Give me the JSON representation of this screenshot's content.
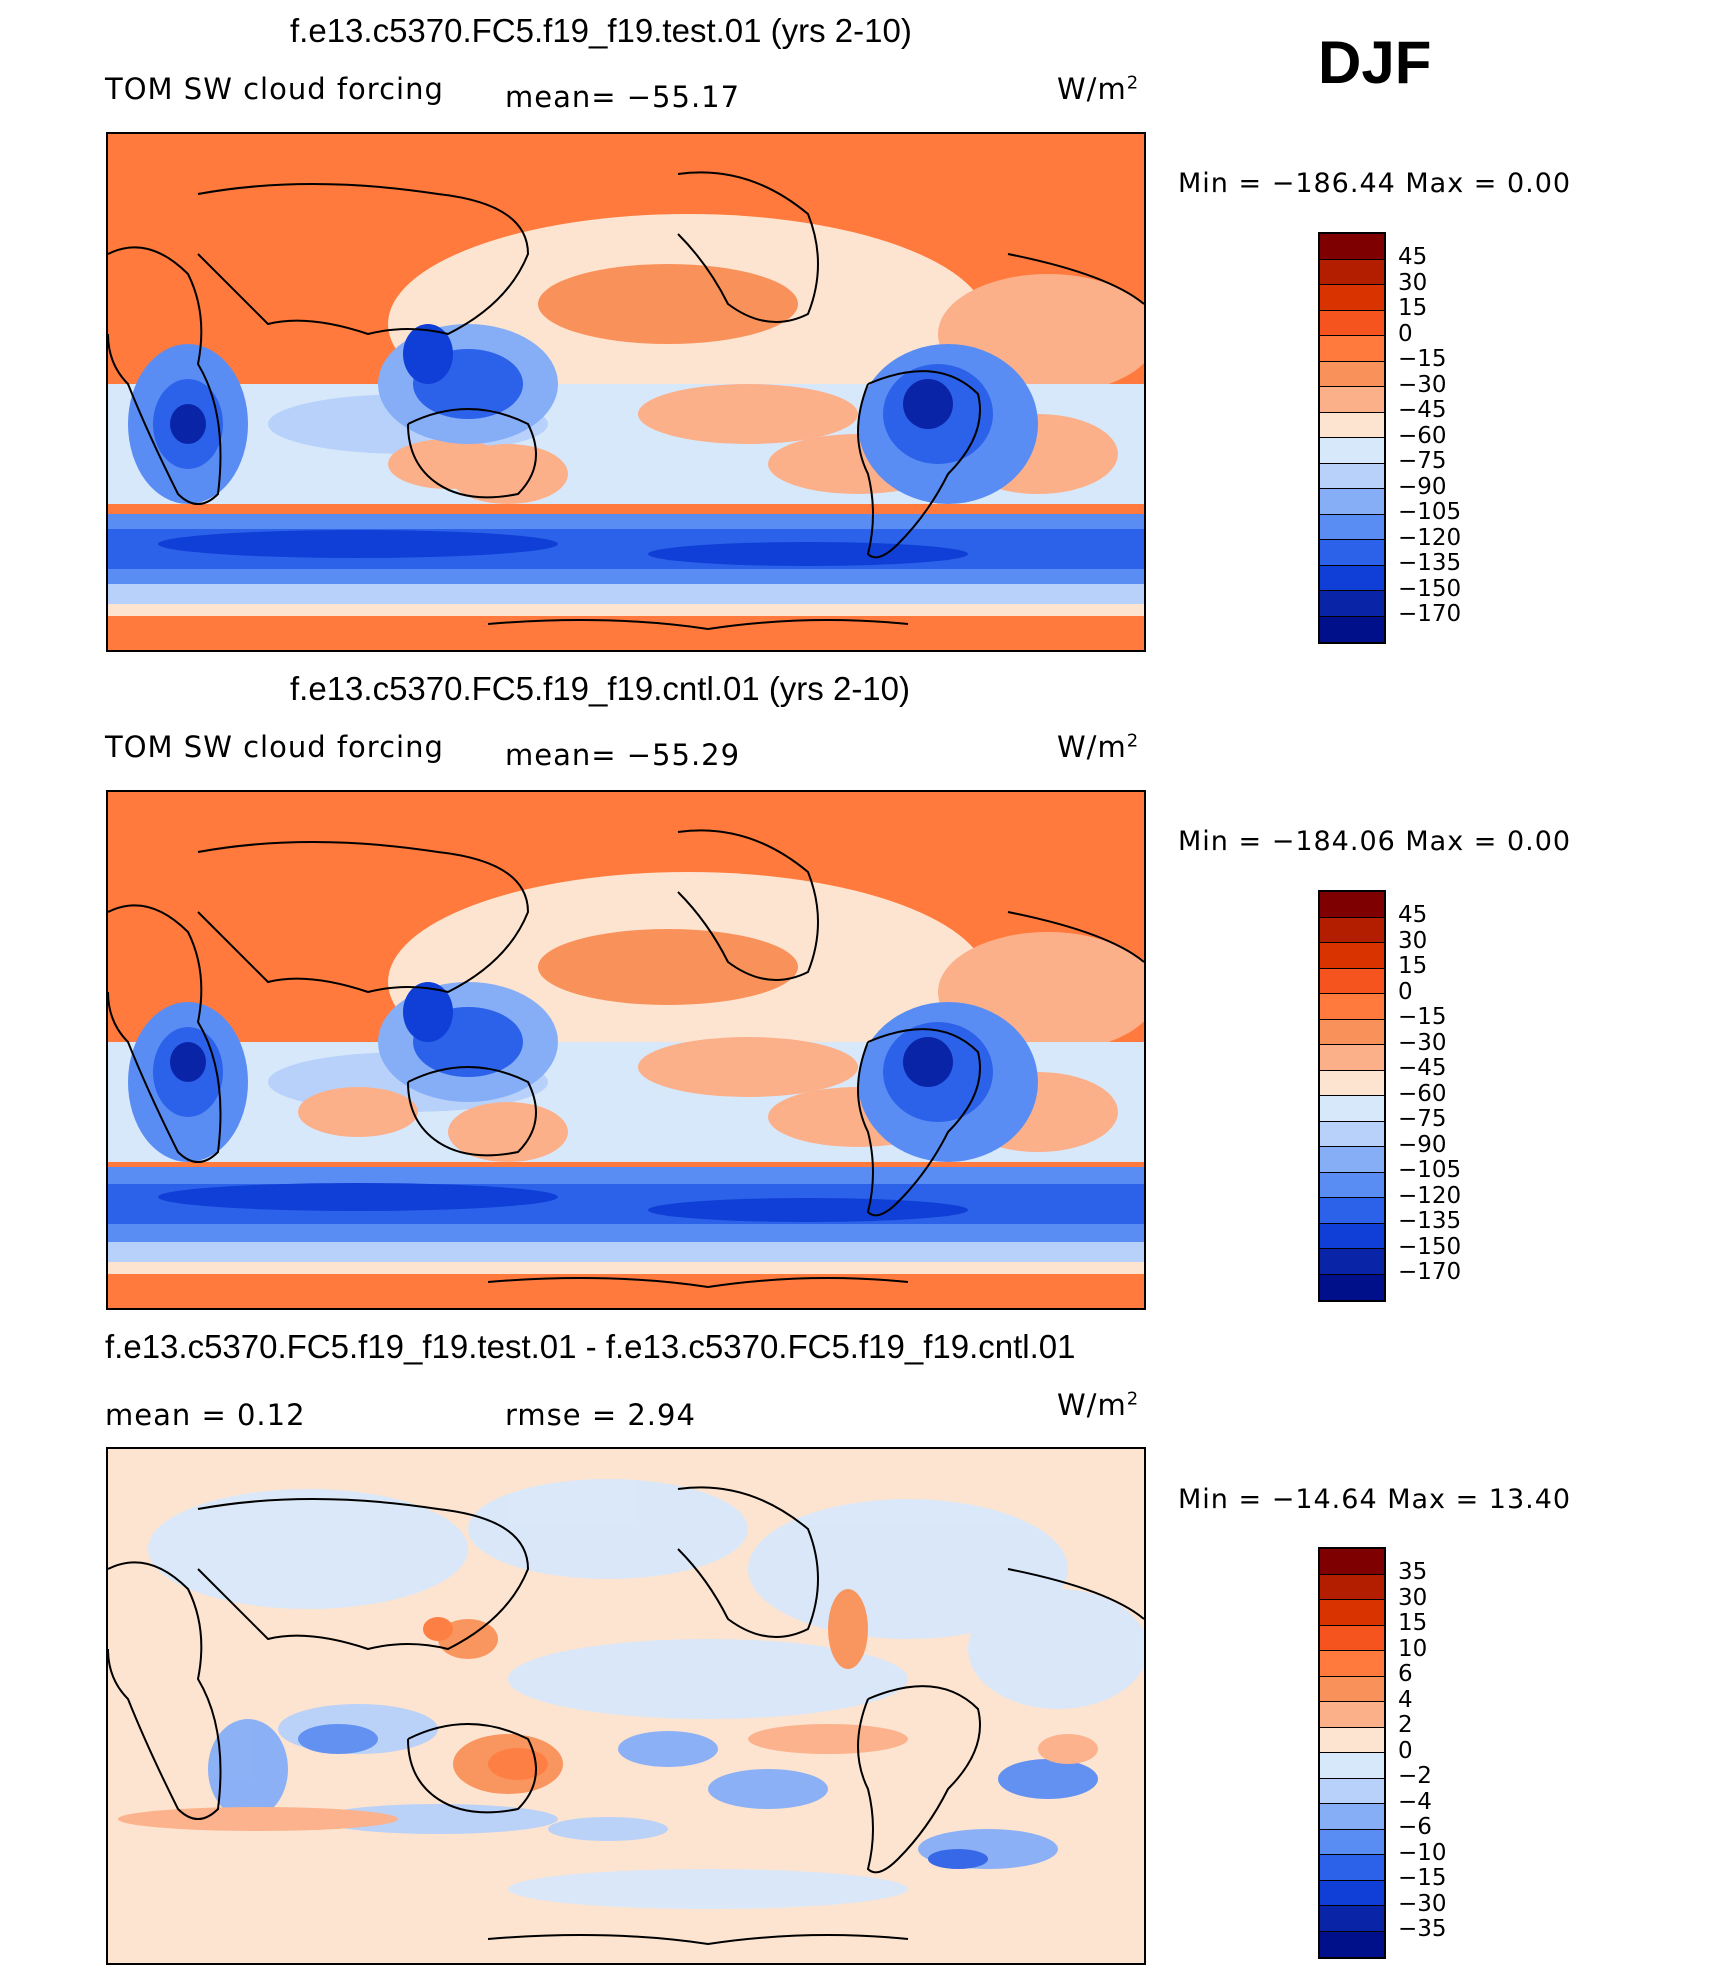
{
  "season": "DJF",
  "units_label": "W/m",
  "units_exp": "2",
  "panels": [
    {
      "title": "f.e13.c5370.FC5.f19_f19.test.01 (yrs 2-10)",
      "variable": "TOM SW cloud forcing",
      "stat_text": "mean= −55.17",
      "minmax": "Min  =  −186.44  Max  =      0.00",
      "levels": [
        "45",
        "30",
        "15",
        "0",
        "−15",
        "−30",
        "−45",
        "−60",
        "−75",
        "−90",
        "−105",
        "−120",
        "−135",
        "−150",
        "−170"
      ],
      "colors": [
        "#7f0000",
        "#b31e00",
        "#d93400",
        "#f5541f",
        "#ff7a3c",
        "#f9915a",
        "#fbb08a",
        "#fde4d0",
        "#d8e8fb",
        "#b7d1fb",
        "#86aef7",
        "#5a8df3",
        "#2c62ea",
        "#0f3fd6",
        "#0a24a8",
        "#00108a"
      ]
    },
    {
      "title": "f.e13.c5370.FC5.f19_f19.cntl.01 (yrs 2-10)",
      "variable": "TOM SW cloud forcing",
      "stat_text": "mean= −55.29",
      "minmax": "Min  =  −184.06  Max  =      0.00",
      "levels": [
        "45",
        "30",
        "15",
        "0",
        "−15",
        "−30",
        "−45",
        "−60",
        "−75",
        "−90",
        "−105",
        "−120",
        "−135",
        "−150",
        "−170"
      ],
      "colors": [
        "#7f0000",
        "#b31e00",
        "#d93400",
        "#f5541f",
        "#ff7a3c",
        "#f9915a",
        "#fbb08a",
        "#fde4d0",
        "#d8e8fb",
        "#b7d1fb",
        "#86aef7",
        "#5a8df3",
        "#2c62ea",
        "#0f3fd6",
        "#0a24a8",
        "#00108a"
      ]
    },
    {
      "title": "f.e13.c5370.FC5.f19_f19.test.01 - f.e13.c5370.FC5.f19_f19.cntl.01",
      "mean_text": "mean  =     0.12",
      "rmse_text": "rmse  =     2.94",
      "minmax": "Min  =  −14.64  Max  =   13.40",
      "levels": [
        "35",
        "30",
        "15",
        "10",
        "6",
        "4",
        "2",
        "0",
        "−2",
        "−4",
        "−6",
        "−10",
        "−15",
        "−30",
        "−35"
      ],
      "colors": [
        "#7f0000",
        "#b31e00",
        "#d93400",
        "#f5541f",
        "#ff7a3c",
        "#f9915a",
        "#fbb08a",
        "#fde4d0",
        "#d8e8fb",
        "#b7d1fb",
        "#86aef7",
        "#5a8df3",
        "#2c62ea",
        "#0f3fd6",
        "#0a24a8",
        "#00108a"
      ]
    }
  ]
}
